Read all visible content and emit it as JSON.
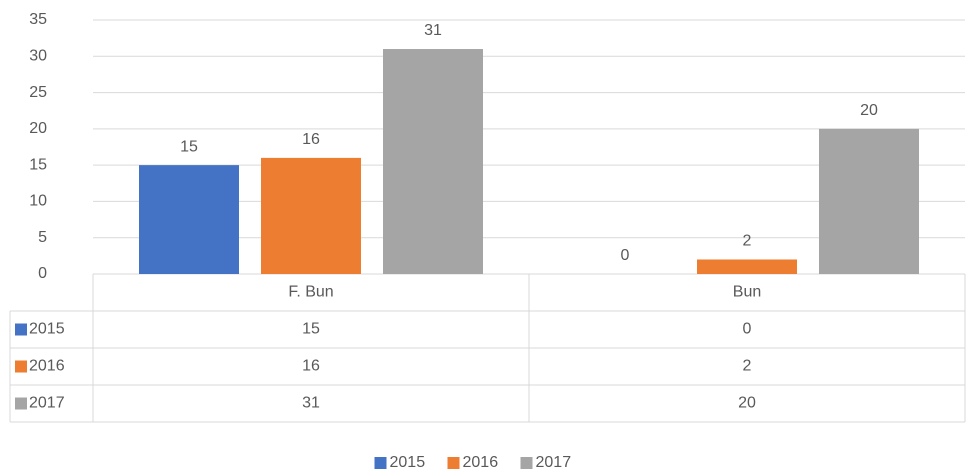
{
  "chart_data": {
    "type": "bar",
    "categories": [
      "F. Bun",
      "Bun"
    ],
    "series": [
      {
        "name": "2015",
        "color": "#4472c4",
        "values": [
          15,
          0
        ]
      },
      {
        "name": "2016",
        "color": "#ed7d31",
        "values": [
          16,
          2
        ]
      },
      {
        "name": "2017",
        "color": "#a5a5a5",
        "values": [
          31,
          20
        ]
      }
    ],
    "ylim": [
      0,
      35
    ],
    "yticks": [
      0,
      5,
      10,
      15,
      20,
      25,
      30,
      35
    ],
    "grid": true,
    "data_table": true,
    "legend": "bottom"
  }
}
